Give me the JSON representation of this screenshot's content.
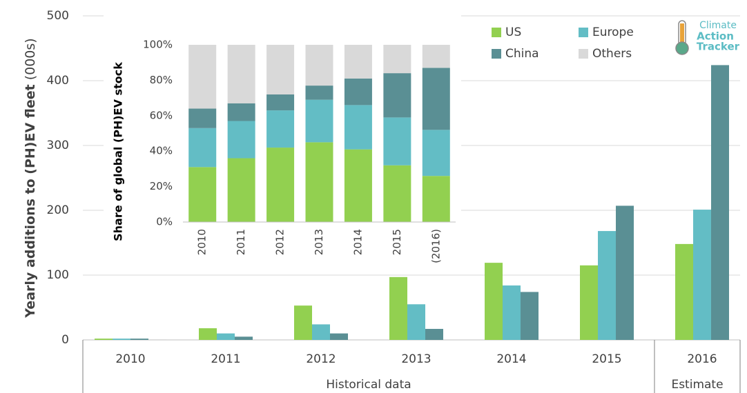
{
  "chart_data": [
    {
      "type": "bar",
      "y_label": "Yearly additions to (PH)EV fleet",
      "y_label_unit": "(000s)",
      "categories": [
        "2010",
        "2011",
        "2012",
        "2013",
        "2014",
        "2015",
        "2016"
      ],
      "groups": [
        {
          "label": "Historical data",
          "size": 6
        },
        {
          "label": "Estimate",
          "size": 1
        }
      ],
      "series": [
        {
          "name": "US",
          "color": "#92d050",
          "values": [
            2,
            18,
            53,
            97,
            119,
            115,
            148
          ]
        },
        {
          "name": "Europe",
          "color": "#63bdc5",
          "values": [
            2,
            10,
            24,
            55,
            84,
            168,
            201
          ]
        },
        {
          "name": "China",
          "color": "#5a8f94",
          "values": [
            2,
            5,
            10,
            17,
            74,
            207,
            424
          ]
        },
        {
          "name": "Others",
          "color": "#d9d9d9",
          "values": [
            1,
            null,
            null,
            null,
            null,
            null,
            null
          ]
        }
      ],
      "ylim": [
        0,
        500
      ],
      "yticks": [
        0,
        100,
        200,
        300,
        400,
        500
      ],
      "grid": true,
      "legend": "upper right",
      "logo": [
        "Climate",
        "Action",
        "Tracker"
      ]
    },
    {
      "type": "stacked_bar",
      "y_label": "Share of global (PH)EV stock",
      "categories": [
        "2010",
        "2011",
        "2012",
        "2013",
        "2014",
        "2015",
        "(2016)"
      ],
      "series": [
        {
          "name": "US",
          "color": "#92d050",
          "values": [
            31,
            36,
            42,
            45,
            41,
            32,
            26
          ]
        },
        {
          "name": "Europe",
          "color": "#63bdc5",
          "values": [
            22,
            21,
            21,
            24,
            25,
            27,
            26
          ]
        },
        {
          "name": "China",
          "color": "#5a8f94",
          "values": [
            11,
            10,
            9,
            8,
            15,
            25,
            35
          ]
        },
        {
          "name": "Others",
          "color": "#d9d9d9",
          "values": [
            36,
            33,
            28,
            23,
            19,
            16,
            13
          ]
        }
      ],
      "ylim": [
        0,
        100
      ],
      "yticks": [
        {
          "value": 0,
          "label": "0%"
        },
        {
          "value": 20,
          "label": "20%"
        },
        {
          "value": 40,
          "label": "40%"
        },
        {
          "value": 60,
          "label": "60%"
        },
        {
          "value": 80,
          "label": "80%"
        },
        {
          "value": 100,
          "label": "100%"
        }
      ],
      "grid": false
    }
  ]
}
